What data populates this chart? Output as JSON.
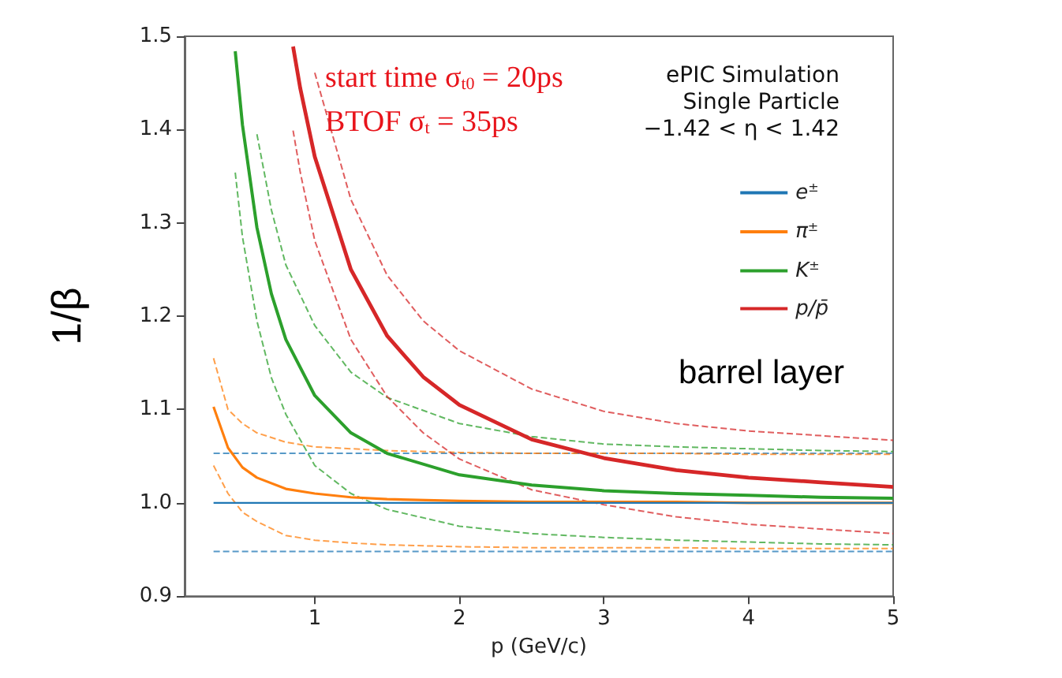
{
  "chart_data": {
    "type": "line",
    "annotations": [
      "start time σ$_{t0}$ = 20ps",
      "BTOF σ$_{t}$ = 35ps",
      "ePIC Simulation",
      "Single Particle",
      "−1.42 < η < 1.42",
      "barrel layer"
    ],
    "xlabel": "p (GeV/c)",
    "ylabel": "1/β",
    "xlim": [
      0.1,
      5
    ],
    "xticks": [
      1,
      2,
      3,
      4,
      5
    ],
    "ylim": [
      0.9,
      1.5
    ],
    "yticks": [
      0.9,
      {
        "value": 1.0,
        "label": "1.0"
      },
      1.1,
      1.2,
      1.3,
      1.4,
      1.5
    ],
    "grid": false,
    "legend": "top right",
    "marker": "none",
    "line_style": "solid",
    "series": [
      {
        "name": "e$^{±}$",
        "color": "#1f77b4",
        "x": [
          0.3,
          1,
          2,
          3,
          4,
          5
        ],
        "values": [
          1.0,
          1.0,
          1.0,
          1.0,
          1.0,
          1.0
        ]
      },
      {
        "name": "π$^{±}$",
        "color": "#ff7f0e",
        "x": [
          0.3,
          0.4,
          0.5,
          0.6,
          0.8,
          1,
          1.25,
          1.5,
          2,
          2.5,
          3,
          3.5,
          4,
          4.5,
          5
        ],
        "values": [
          1.103,
          1.059,
          1.038,
          1.027,
          1.015,
          1.01,
          1.006,
          1.004,
          1.002,
          1.001,
          1.001,
          1.001,
          1.0,
          1.0,
          1.0
        ]
      },
      {
        "name": "K$^{±}$",
        "color": "#2ca02c",
        "x": [
          0.45,
          0.5,
          0.6,
          0.7,
          0.8,
          1,
          1.25,
          1.5,
          2,
          2.5,
          3,
          3.5,
          4,
          4.5,
          5
        ],
        "values": [
          1.484,
          1.405,
          1.295,
          1.224,
          1.175,
          1.115,
          1.075,
          1.053,
          1.03,
          1.019,
          1.013,
          1.01,
          1.008,
          1.006,
          1.005
        ]
      },
      {
        "name": "p/p̄",
        "color": "#d62728",
        "x": [
          0.85,
          0.9,
          1,
          1.25,
          1.5,
          1.75,
          2,
          2.5,
          3,
          3.5,
          4,
          4.5,
          5
        ],
        "values": [
          1.489,
          1.444,
          1.371,
          1.25,
          1.179,
          1.135,
          1.105,
          1.068,
          1.048,
          1.035,
          1.027,
          1.022,
          1.017
        ]
      },
      {
        "color": "#1f77b4",
        "line_style": "dashed",
        "x": [
          0.3,
          1,
          2,
          3,
          4,
          5
        ],
        "values": [
          1.053,
          1.053,
          1.053,
          1.053,
          1.053,
          1.053
        ]
      },
      {
        "color": "#1f77b4",
        "line_style": "dashed",
        "x": [
          0.3,
          1,
          2,
          3,
          4,
          5
        ],
        "values": [
          0.948,
          0.948,
          0.948,
          0.948,
          0.948,
          0.948
        ]
      },
      {
        "color": "#ff7f0e",
        "line_style": "dashed",
        "x": [
          0.3,
          0.4,
          0.5,
          0.6,
          0.8,
          1,
          1.25,
          1.5,
          2,
          2.5,
          3,
          3.5,
          4,
          4.5,
          5
        ],
        "values": [
          1.155,
          1.1,
          1.085,
          1.075,
          1.065,
          1.06,
          1.058,
          1.056,
          1.054,
          1.053,
          1.053,
          1.053,
          1.052,
          1.052,
          1.052
        ]
      },
      {
        "color": "#ff7f0e",
        "line_style": "dashed",
        "x": [
          0.3,
          0.4,
          0.5,
          0.6,
          0.8,
          1,
          1.25,
          1.5,
          2,
          2.5,
          3,
          3.5,
          4,
          4.5,
          5
        ],
        "values": [
          1.04,
          1.01,
          0.99,
          0.98,
          0.965,
          0.96,
          0.957,
          0.955,
          0.953,
          0.952,
          0.952,
          0.952,
          0.951,
          0.951,
          0.951
        ]
      },
      {
        "color": "#2ca02c",
        "line_style": "dashed",
        "x": [
          0.6,
          0.7,
          0.8,
          1,
          1.25,
          1.5,
          2,
          2.5,
          3,
          3.5,
          4,
          4.5,
          5
        ],
        "values": [
          1.395,
          1.314,
          1.255,
          1.19,
          1.14,
          1.113,
          1.085,
          1.071,
          1.063,
          1.06,
          1.058,
          1.056,
          1.055
        ]
      },
      {
        "color": "#2ca02c",
        "line_style": "dashed",
        "x": [
          0.45,
          0.5,
          0.6,
          0.7,
          0.8,
          1,
          1.25,
          1.5,
          2,
          2.5,
          3,
          3.5,
          4,
          4.5,
          5
        ],
        "values": [
          1.354,
          1.285,
          1.195,
          1.134,
          1.095,
          1.04,
          1.01,
          0.993,
          0.975,
          0.967,
          0.963,
          0.96,
          0.958,
          0.956,
          0.955
        ]
      },
      {
        "color": "#d62728",
        "line_style": "dashed",
        "x": [
          1,
          1.25,
          1.5,
          1.75,
          2,
          2.5,
          3,
          3.5,
          4,
          4.5,
          5
        ],
        "values": [
          1.461,
          1.325,
          1.244,
          1.195,
          1.163,
          1.122,
          1.098,
          1.085,
          1.077,
          1.072,
          1.067
        ]
      },
      {
        "color": "#d62728",
        "line_style": "dashed",
        "x": [
          0.85,
          0.9,
          1,
          1.25,
          1.5,
          1.75,
          2,
          2.5,
          3,
          3.5,
          4,
          4.5,
          5
        ],
        "values": [
          1.399,
          1.354,
          1.281,
          1.175,
          1.114,
          1.075,
          1.047,
          1.014,
          0.998,
          0.985,
          0.977,
          0.972,
          0.967
        ]
      }
    ]
  }
}
